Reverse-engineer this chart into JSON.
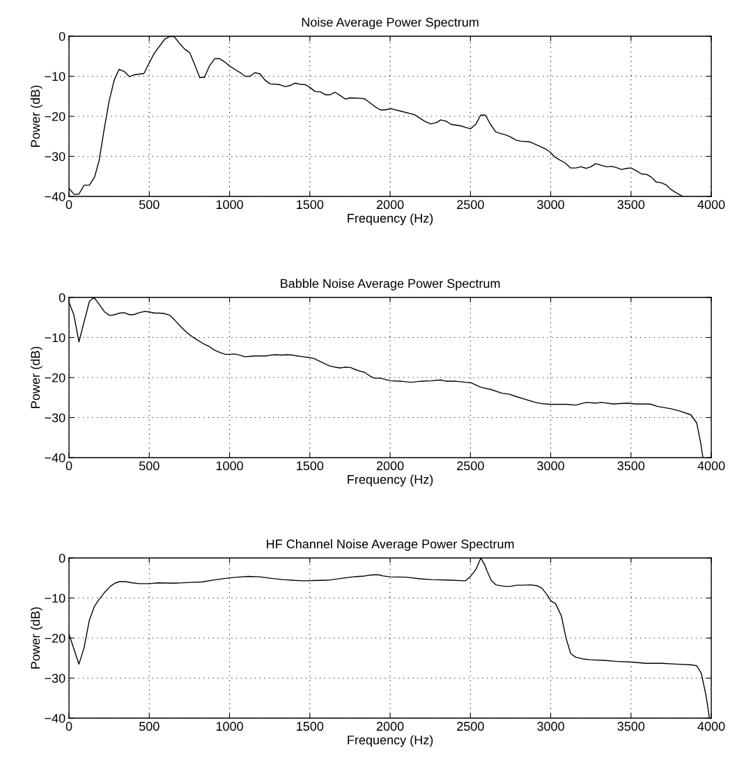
{
  "chart_data": [
    {
      "type": "line",
      "title": "Noise Average Power Spectrum",
      "xlabel": "Frequency (Hz)",
      "ylabel": "Power (dB)",
      "color": "#000000",
      "grid": true,
      "line_style": "solid",
      "marker": "none",
      "xlim": [
        0,
        4000
      ],
      "ylim": [
        -40,
        0
      ],
      "xticks": [
        0,
        500,
        1000,
        1500,
        2000,
        2500,
        3000,
        3500,
        4000
      ],
      "yticks": [
        -40,
        -30,
        -20,
        -10,
        0
      ],
      "x": [
        0,
        33,
        62,
        94,
        127,
        159,
        188,
        218,
        250,
        282,
        312,
        344,
        376,
        409,
        467,
        499,
        532,
        597,
        626,
        655,
        691,
        720,
        752,
        782,
        814,
        843,
        875,
        908,
        937,
        969,
        1002,
        1034,
        1067,
        1096,
        1128,
        1158,
        1190,
        1219,
        1252,
        1313,
        1346,
        1378,
        1407,
        1439,
        1472,
        1501,
        1533,
        1566,
        1595,
        1627,
        1657,
        1689,
        1721,
        1751,
        1819,
        1844,
        1877,
        1906,
        1938,
        1967,
        2007,
        2065,
        2152,
        2217,
        2253,
        2287,
        2315,
        2347,
        2379,
        2441,
        2473,
        2502,
        2535,
        2564,
        2593,
        2625,
        2658,
        2687,
        2716,
        2748,
        2781,
        2810,
        2871,
        2904,
        2966,
        2998,
        3030,
        3060,
        3092,
        3124,
        3157,
        3189,
        3222,
        3251,
        3280,
        3312,
        3348,
        3381,
        3410,
        3442,
        3472,
        3500,
        3533,
        3565,
        3598,
        3627,
        3656,
        3688,
        3718,
        3750,
        3782,
        3822
      ],
      "values": [
        -38.0,
        -39.5,
        -39.4,
        -37.2,
        -37.2,
        -35.2,
        -31.0,
        -23.5,
        -16.2,
        -10.9,
        -8.3,
        -8.8,
        -10.1,
        -9.6,
        -9.3,
        -6.7,
        -4.2,
        -0.7,
        -0.1,
        -0.1,
        -1.9,
        -3.2,
        -4.1,
        -7.0,
        -10.3,
        -10.3,
        -7.4,
        -5.6,
        -5.6,
        -6.4,
        -7.5,
        -8.3,
        -9.1,
        -10.0,
        -10.0,
        -9.1,
        -9.4,
        -10.9,
        -11.9,
        -12.1,
        -12.6,
        -12.3,
        -11.7,
        -12.0,
        -12.1,
        -12.8,
        -13.8,
        -13.9,
        -14.6,
        -14.6,
        -14.0,
        -14.8,
        -15.7,
        -15.4,
        -15.5,
        -15.7,
        -16.7,
        -17.6,
        -18.4,
        -18.4,
        -18.1,
        -18.7,
        -19.6,
        -21.3,
        -21.9,
        -21.6,
        -20.9,
        -21.2,
        -22.0,
        -22.4,
        -22.8,
        -23.1,
        -21.9,
        -19.7,
        -19.7,
        -22.0,
        -23.9,
        -24.3,
        -24.6,
        -25.1,
        -25.9,
        -26.2,
        -26.4,
        -27.0,
        -28.1,
        -29.0,
        -30.3,
        -31.0,
        -31.7,
        -32.9,
        -32.9,
        -32.6,
        -33.0,
        -32.6,
        -31.8,
        -32.2,
        -32.6,
        -32.5,
        -32.8,
        -33.3,
        -33.0,
        -32.9,
        -33.6,
        -34.4,
        -34.5,
        -35.2,
        -36.4,
        -36.6,
        -37.1,
        -38.3,
        -39.1,
        -40.0
      ]
    },
    {
      "type": "line",
      "title": "Babble Noise Average Power Spectrum",
      "xlabel": "Frequency (Hz)",
      "ylabel": "Power (dB)",
      "color": "#000000",
      "grid": true,
      "line_style": "solid",
      "marker": "none",
      "xlim": [
        0,
        4000
      ],
      "ylim": [
        -40,
        0
      ],
      "xticks": [
        0,
        500,
        1000,
        1500,
        2000,
        2500,
        3000,
        3500,
        4000
      ],
      "yticks": [
        -40,
        -30,
        -20,
        -10,
        0
      ],
      "x": [
        0,
        30,
        62,
        94,
        127,
        156,
        188,
        221,
        253,
        286,
        315,
        344,
        376,
        402,
        438,
        470,
        499,
        532,
        561,
        590,
        626,
        662,
        698,
        735,
        771,
        807,
        839,
        875,
        908,
        944,
        973,
        1002,
        1031,
        1063,
        1096,
        1128,
        1161,
        1193,
        1226,
        1258,
        1291,
        1327,
        1356,
        1392,
        1422,
        1458,
        1491,
        1523,
        1559,
        1595,
        1624,
        1656,
        1689,
        1718,
        1754,
        1783,
        1812,
        1841,
        1877,
        1906,
        1935,
        2000,
        2065,
        2130,
        2196,
        2261,
        2315,
        2347,
        2404,
        2470,
        2503,
        2564,
        2629,
        2694,
        2745,
        2781,
        2846,
        2904,
        2941,
        2998,
        3100,
        3157,
        3193,
        3222,
        3280,
        3316,
        3389,
        3475,
        3533,
        3606,
        3627,
        3663,
        3750,
        3808,
        3873,
        3909,
        3935,
        3948
      ],
      "values": [
        -1.2,
        -4.3,
        -11.1,
        -6.1,
        -1.0,
        0,
        -1.7,
        -3.6,
        -4.5,
        -4.3,
        -3.9,
        -3.8,
        -4.3,
        -4.3,
        -3.8,
        -3.5,
        -3.6,
        -3.9,
        -3.9,
        -4.0,
        -4.4,
        -5.8,
        -7.4,
        -8.8,
        -9.9,
        -10.8,
        -11.6,
        -12.3,
        -13.2,
        -13.8,
        -14.2,
        -14.2,
        -14.1,
        -14.4,
        -14.8,
        -14.7,
        -14.6,
        -14.6,
        -14.6,
        -14.4,
        -14.3,
        -14.4,
        -14.3,
        -14.4,
        -14.6,
        -14.8,
        -15.0,
        -15.2,
        -15.9,
        -16.6,
        -17.1,
        -17.4,
        -17.6,
        -17.4,
        -17.5,
        -18.0,
        -18.4,
        -18.7,
        -19.7,
        -20.2,
        -20.1,
        -20.8,
        -20.9,
        -21.2,
        -20.9,
        -20.8,
        -20.6,
        -20.9,
        -20.9,
        -21.2,
        -21.3,
        -22.4,
        -23.0,
        -23.9,
        -24.2,
        -24.7,
        -25.5,
        -26.2,
        -26.5,
        -26.7,
        -26.7,
        -26.9,
        -26.5,
        -26.2,
        -26.4,
        -26.2,
        -26.6,
        -26.4,
        -26.6,
        -26.6,
        -26.7,
        -27.2,
        -27.8,
        -28.4,
        -29.3,
        -31.3,
        -36.5,
        -40
      ]
    },
    {
      "type": "line",
      "title": "HF Channel Noise Average Power Spectrum",
      "xlabel": "Frequency (Hz)",
      "ylabel": "Power (dB)",
      "color": "#000000",
      "grid": true,
      "line_style": "solid",
      "marker": "none",
      "xlim": [
        0,
        4000
      ],
      "ylim": [
        -40,
        0
      ],
      "xticks": [
        0,
        500,
        1000,
        1500,
        2000,
        2500,
        3000,
        3500,
        4000
      ],
      "yticks": [
        -40,
        -30,
        -20,
        -10,
        0
      ],
      "x": [
        0,
        62,
        94,
        127,
        159,
        192,
        224,
        257,
        286,
        315,
        351,
        395,
        438,
        503,
        554,
        655,
        756,
        829,
        901,
        973,
        1046,
        1118,
        1190,
        1262,
        1334,
        1407,
        1465,
        1552,
        1624,
        1696,
        1769,
        1841,
        1892,
        1928,
        1957,
        2000,
        2101,
        2188,
        2260,
        2362,
        2470,
        2503,
        2535,
        2565,
        2590,
        2604,
        2629,
        2658,
        2716,
        2745,
        2788,
        2824,
        2875,
        2911,
        2944,
        2976,
        3001,
        3030,
        3066,
        3096,
        3125,
        3157,
        3201,
        3244,
        3345,
        3403,
        3504,
        3591,
        3692,
        3779,
        3880,
        3909,
        3938,
        3967,
        3988
      ],
      "values": [
        -19.0,
        -26.5,
        -22.4,
        -15.5,
        -12.0,
        -10.1,
        -8.5,
        -7.1,
        -6.3,
        -5.9,
        -5.9,
        -6.2,
        -6.4,
        -6.4,
        -6.2,
        -6.3,
        -6.1,
        -6.0,
        -5.5,
        -5.1,
        -4.8,
        -4.6,
        -4.7,
        -5.1,
        -5.4,
        -5.6,
        -5.7,
        -5.6,
        -5.5,
        -5.1,
        -4.7,
        -4.5,
        -4.2,
        -4.2,
        -4.5,
        -4.7,
        -4.8,
        -5.2,
        -5.4,
        -5.5,
        -5.7,
        -4.5,
        -2.8,
        0,
        -1.8,
        -3.3,
        -5.5,
        -6.7,
        -7.1,
        -7.1,
        -6.8,
        -6.8,
        -6.7,
        -6.9,
        -7.5,
        -9.1,
        -10.7,
        -11.4,
        -14.4,
        -20.1,
        -23.9,
        -24.8,
        -25.2,
        -25.4,
        -25.6,
        -25.8,
        -26.0,
        -26.3,
        -26.3,
        -26.5,
        -26.7,
        -26.9,
        -28.8,
        -34.3,
        -39.8
      ]
    }
  ]
}
